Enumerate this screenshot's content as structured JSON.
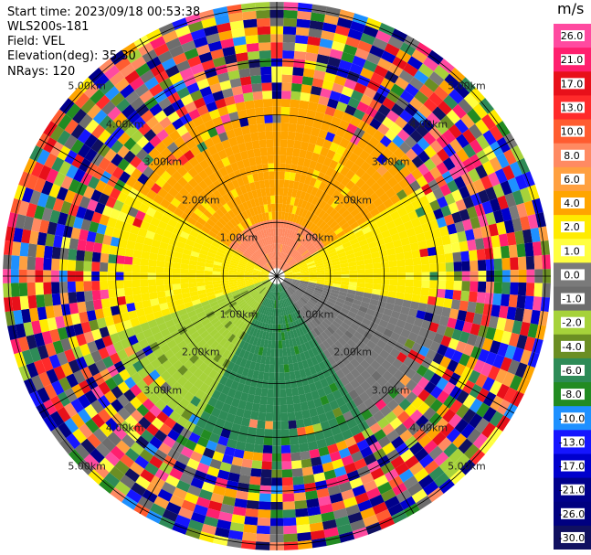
{
  "info": {
    "start_time": "Start time: 2023/09/18 00:53:38",
    "instrument": "WLS200s-181",
    "field": "Field: VEL",
    "elevation": "Elevation(deg): 35.30",
    "nrays": "NRays: 120"
  },
  "ring_labels": [
    "1.00km",
    "2.00km",
    "3.00km",
    "4.00km",
    "5.00km"
  ],
  "colorbar": {
    "unit": "m/s",
    "ticks": [
      "26.0",
      "21.0",
      "17.0",
      "13.0",
      "10.0",
      "8.0",
      "6.0",
      "4.0",
      "2.0",
      "1.0",
      "0.0",
      "-1.0",
      "-2.0",
      "-4.0",
      "-6.0",
      "-8.0",
      "-10.0",
      "-13.0",
      "-17.0",
      "-21.0",
      "-26.0",
      "-30.0"
    ],
    "colors": [
      "#ff4aa0",
      "#ff1f6e",
      "#e8101a",
      "#ff2a2a",
      "#ff5c30",
      "#ff8a62",
      "#ffa040",
      "#ffa500",
      "#ffeb00",
      "#ffff40",
      "#7a7a7a",
      "#6d6d6d",
      "#a6d23a",
      "#6b8e23",
      "#2e8b57",
      "#228b22",
      "#1e90ff",
      "#1515ff",
      "#0000cd",
      "#00008b",
      "#000080",
      "#101060"
    ]
  },
  "scan": {
    "n_rays": 120,
    "n_rings": 5,
    "max_range_km": 5.0
  }
}
